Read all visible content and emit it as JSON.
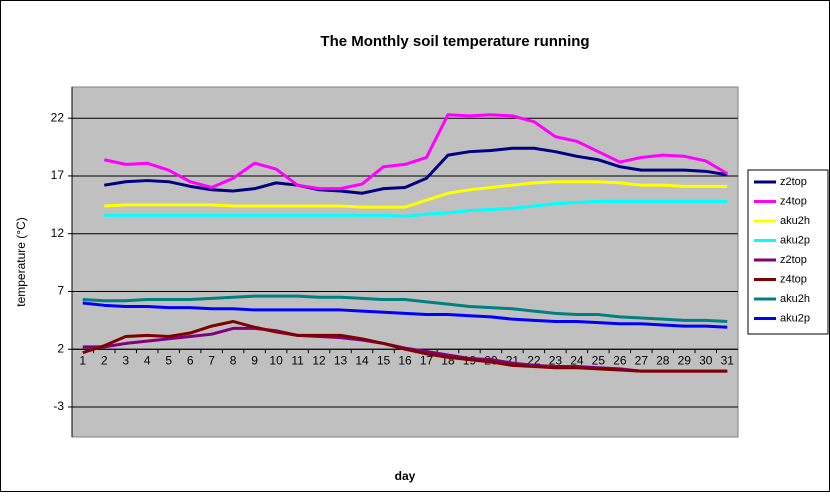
{
  "chart_data": {
    "type": "line",
    "title": "The Monthly soil temperature running",
    "x_label": "day",
    "y_label": "temperature (°C)",
    "categories": [
      "1",
      "2",
      "3",
      "4",
      "5",
      "6",
      "7",
      "8",
      "9",
      "10",
      "11",
      "12",
      "13",
      "14",
      "15",
      "16",
      "17",
      "18",
      "19",
      "20",
      "21",
      "22",
      "23",
      "24",
      "25",
      "26",
      "27",
      "28",
      "29",
      "30",
      "31"
    ],
    "ylim": [
      -5.6,
      24.7
    ],
    "yticks": [
      -3,
      2,
      7,
      12,
      17,
      22
    ],
    "xaxis_at": 2,
    "grid": true,
    "legend": "right",
    "series": [
      {
        "name": "z2top",
        "color": "#000080",
        "values": [
          null,
          16.2,
          16.5,
          16.6,
          16.5,
          16.1,
          15.8,
          15.7,
          15.9,
          16.4,
          16.2,
          15.8,
          15.7,
          15.5,
          15.9,
          16.0,
          16.8,
          18.8,
          19.1,
          19.2,
          19.4,
          19.4,
          19.1,
          18.7,
          18.4,
          17.8,
          17.5,
          17.5,
          17.5,
          17.4,
          17.1
        ]
      },
      {
        "name": "z4top",
        "color": "#ff00ff",
        "values": [
          null,
          18.4,
          18.0,
          18.1,
          17.5,
          16.5,
          16.0,
          16.8,
          18.1,
          17.6,
          16.2,
          15.9,
          15.9,
          16.3,
          17.8,
          18.0,
          18.6,
          22.3,
          22.2,
          22.3,
          22.2,
          21.7,
          20.4,
          20.0,
          19.1,
          18.2,
          18.6,
          18.8,
          18.7,
          18.3,
          17.2
        ]
      },
      {
        "name": "aku2h",
        "color": "#ffff00",
        "values": [
          null,
          14.4,
          14.5,
          14.5,
          14.5,
          14.5,
          14.5,
          14.4,
          14.4,
          14.4,
          14.4,
          14.4,
          14.4,
          14.3,
          14.3,
          14.3,
          14.9,
          15.5,
          15.8,
          16.0,
          16.2,
          16.4,
          16.5,
          16.5,
          16.5,
          16.4,
          16.2,
          16.2,
          16.1,
          16.1,
          16.1
        ]
      },
      {
        "name": "aku2p",
        "color": "#00ffff",
        "values": [
          null,
          13.6,
          13.6,
          13.6,
          13.6,
          13.6,
          13.6,
          13.6,
          13.6,
          13.6,
          13.6,
          13.6,
          13.6,
          13.6,
          13.6,
          13.5,
          13.7,
          13.8,
          14.0,
          14.1,
          14.2,
          14.4,
          14.6,
          14.7,
          14.8,
          14.8,
          14.8,
          14.8,
          14.8,
          14.8,
          14.8
        ]
      },
      {
        "name": "z2top",
        "color": "#800080",
        "values": [
          2.2,
          2.2,
          2.5,
          2.7,
          2.9,
          3.1,
          3.3,
          3.8,
          3.8,
          3.6,
          3.2,
          3.1,
          3.0,
          2.8,
          2.5,
          2.1,
          1.8,
          1.5,
          1.2,
          1.1,
          0.8,
          0.6,
          0.5,
          0.5,
          0.4,
          0.3,
          0.1,
          0.1,
          0.1,
          0.1,
          0.1
        ]
      },
      {
        "name": "z4top",
        "color": "#800000",
        "values": [
          1.7,
          2.3,
          3.1,
          3.2,
          3.1,
          3.4,
          4.0,
          4.4,
          3.9,
          3.5,
          3.2,
          3.2,
          3.2,
          2.9,
          2.5,
          2.0,
          1.6,
          1.3,
          1.1,
          0.9,
          0.6,
          0.5,
          0.4,
          0.4,
          0.3,
          0.2,
          0.1,
          0.1,
          0.1,
          0.1,
          0.1
        ]
      },
      {
        "name": "aku2h",
        "color": "#008080",
        "values": [
          6.3,
          6.2,
          6.2,
          6.3,
          6.3,
          6.3,
          6.4,
          6.5,
          6.6,
          6.6,
          6.6,
          6.5,
          6.5,
          6.4,
          6.3,
          6.3,
          6.1,
          5.9,
          5.7,
          5.6,
          5.5,
          5.3,
          5.1,
          5.0,
          5.0,
          4.8,
          4.7,
          4.6,
          4.5,
          4.5,
          4.4
        ]
      },
      {
        "name": "aku2p",
        "color": "#0000ff",
        "values": [
          6.0,
          5.8,
          5.7,
          5.7,
          5.6,
          5.6,
          5.5,
          5.5,
          5.4,
          5.4,
          5.4,
          5.4,
          5.4,
          5.3,
          5.2,
          5.1,
          5.0,
          5.0,
          4.9,
          4.8,
          4.6,
          4.5,
          4.4,
          4.4,
          4.3,
          4.2,
          4.2,
          4.1,
          4.0,
          4.0,
          3.9
        ]
      }
    ]
  }
}
